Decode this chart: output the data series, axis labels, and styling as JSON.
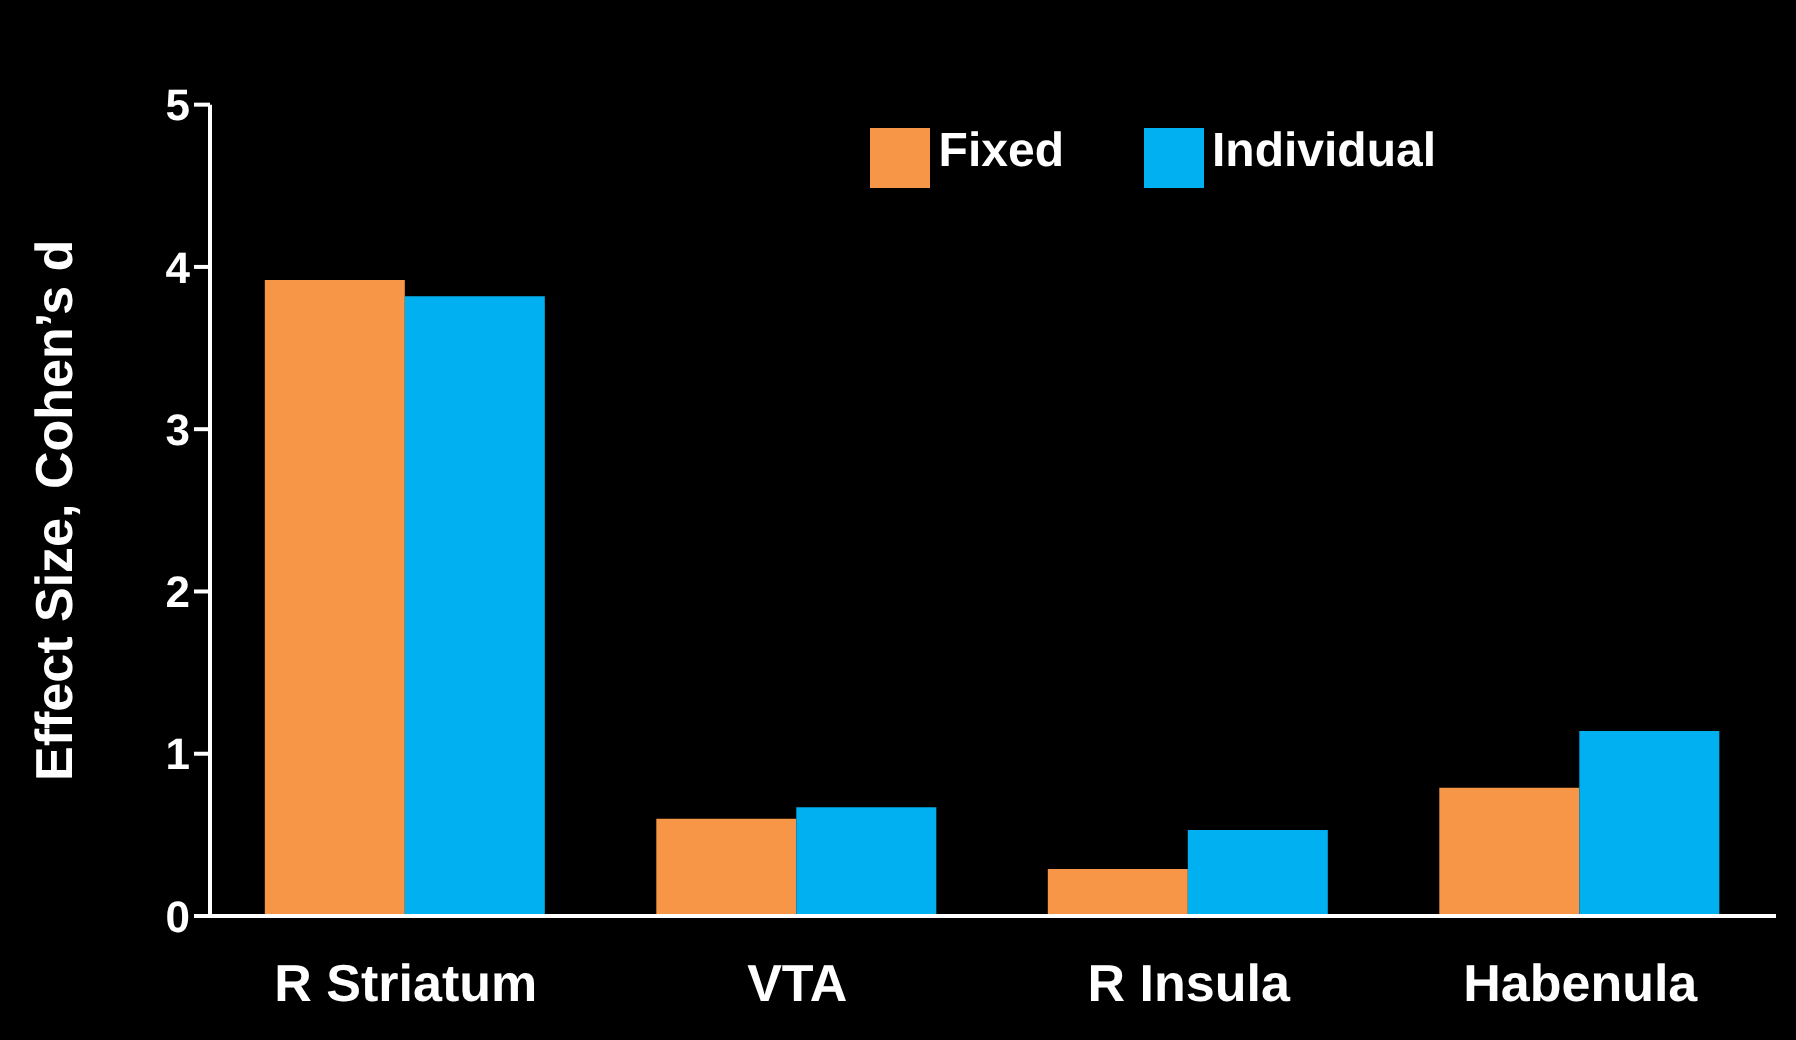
{
  "chart_data": {
    "type": "bar",
    "ylabel": "Effect Size, Cohen’s d",
    "categories": [
      "R Striatum",
      "VTA",
      "R Insula",
      "Habenula"
    ],
    "series": [
      {
        "name": "Fixed",
        "color": "#f79646",
        "values": [
          3.92,
          0.6,
          0.29,
          0.79
        ]
      },
      {
        "name": "Individual",
        "color": "#00b0f0",
        "values": [
          3.82,
          0.67,
          0.53,
          1.14
        ]
      }
    ],
    "ylim": [
      0,
      5
    ],
    "yticks": [
      0,
      1,
      2,
      3,
      4,
      5
    ],
    "grid": false,
    "legend": "top right"
  }
}
